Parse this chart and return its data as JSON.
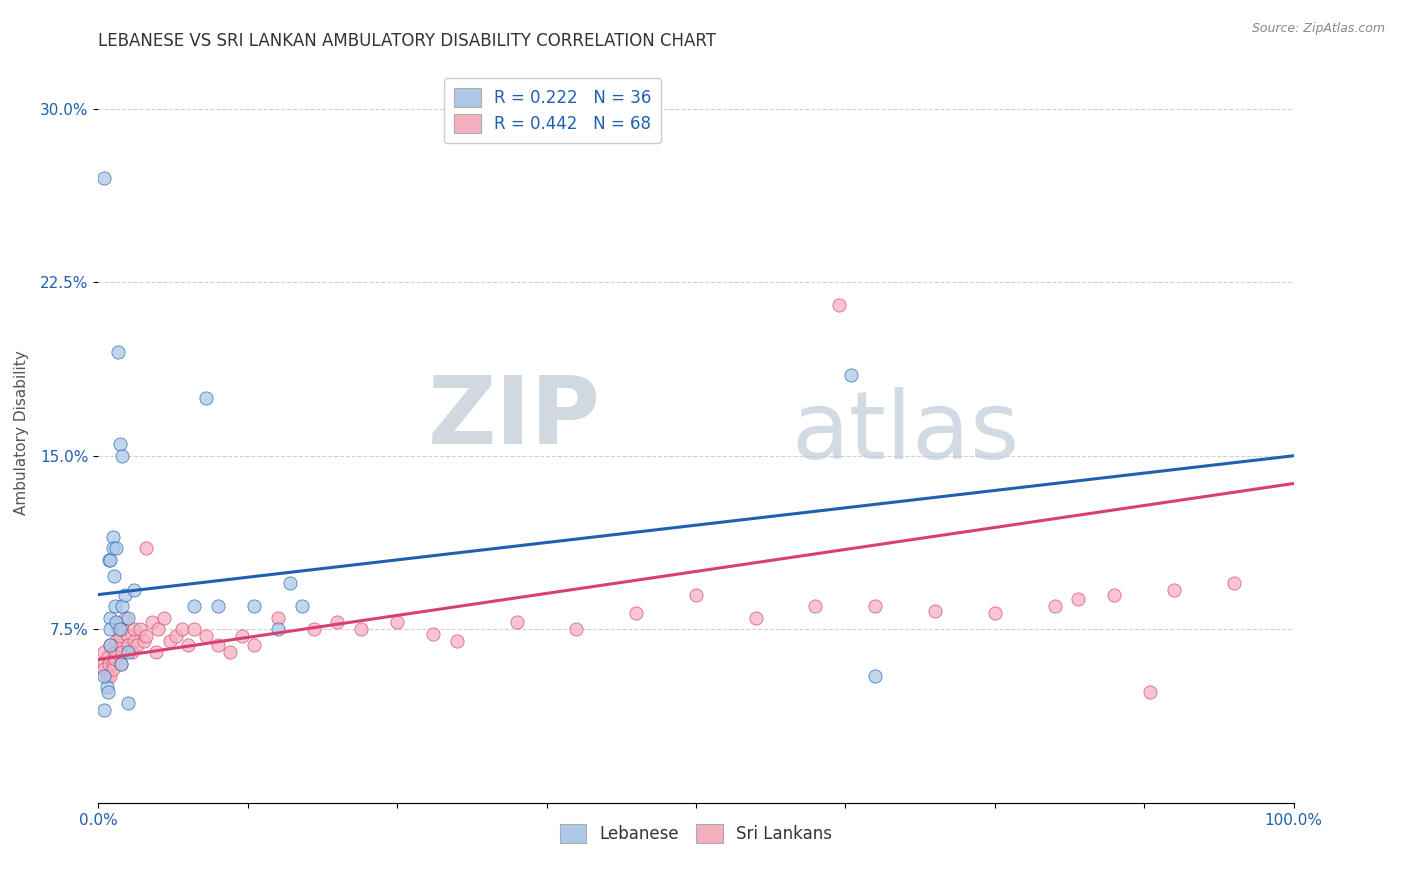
{
  "title": "LEBANESE VS SRI LANKAN AMBULATORY DISABILITY CORRELATION CHART",
  "source": "Source: ZipAtlas.com",
  "ylabel": "Ambulatory Disability",
  "xlim": [
    0,
    1.0
  ],
  "ylim": [
    0.0,
    0.32
  ],
  "yticks": [
    0.075,
    0.15,
    0.225,
    0.3
  ],
  "yticklabels": [
    "7.5%",
    "15.0%",
    "22.5%",
    "30.0%"
  ],
  "xticks": [
    0.0,
    0.125,
    0.25,
    0.375,
    0.5,
    0.625,
    0.75,
    0.875,
    1.0
  ],
  "xticklabels_show": [
    "0.0%",
    "100.0%"
  ],
  "lebanese_R": 0.222,
  "lebanese_N": 36,
  "srilankan_R": 0.442,
  "srilankan_N": 68,
  "lebanese_color": "#adc8e8",
  "srilankan_color": "#f5b0c0",
  "lebanese_line_color": "#2060b0",
  "srilankan_line_color": "#d84070",
  "lebanese_line_start": 0.09,
  "lebanese_line_end": 0.15,
  "srilankan_line_start": 0.062,
  "srilankan_line_end": 0.138,
  "lebanese_x": [
    0.005,
    0.007,
    0.008,
    0.009,
    0.01,
    0.01,
    0.01,
    0.01,
    0.012,
    0.012,
    0.013,
    0.014,
    0.015,
    0.015,
    0.016,
    0.018,
    0.018,
    0.019,
    0.02,
    0.02,
    0.022,
    0.025,
    0.025,
    0.03,
    0.08,
    0.09,
    0.1,
    0.13,
    0.15,
    0.16,
    0.17,
    0.63,
    0.65,
    0.025,
    0.005,
    0.005
  ],
  "lebanese_y": [
    0.27,
    0.05,
    0.048,
    0.105,
    0.105,
    0.08,
    0.075,
    0.068,
    0.115,
    0.11,
    0.098,
    0.085,
    0.11,
    0.078,
    0.195,
    0.155,
    0.075,
    0.06,
    0.15,
    0.085,
    0.09,
    0.08,
    0.065,
    0.092,
    0.085,
    0.175,
    0.085,
    0.085,
    0.075,
    0.095,
    0.085,
    0.185,
    0.055,
    0.043,
    0.04,
    0.055
  ],
  "srilankan_x": [
    0.005,
    0.005,
    0.005,
    0.007,
    0.008,
    0.009,
    0.01,
    0.01,
    0.012,
    0.012,
    0.013,
    0.014,
    0.015,
    0.015,
    0.016,
    0.018,
    0.018,
    0.019,
    0.02,
    0.02,
    0.022,
    0.025,
    0.025,
    0.028,
    0.03,
    0.03,
    0.032,
    0.035,
    0.038,
    0.04,
    0.04,
    0.045,
    0.048,
    0.05,
    0.055,
    0.06,
    0.065,
    0.07,
    0.075,
    0.08,
    0.09,
    0.1,
    0.11,
    0.12,
    0.13,
    0.15,
    0.18,
    0.2,
    0.22,
    0.25,
    0.28,
    0.3,
    0.35,
    0.4,
    0.45,
    0.5,
    0.55,
    0.6,
    0.62,
    0.65,
    0.7,
    0.75,
    0.8,
    0.82,
    0.85,
    0.88,
    0.9,
    0.95
  ],
  "srilankan_y": [
    0.065,
    0.06,
    0.058,
    0.055,
    0.063,
    0.06,
    0.068,
    0.055,
    0.06,
    0.058,
    0.065,
    0.062,
    0.07,
    0.065,
    0.075,
    0.068,
    0.072,
    0.06,
    0.075,
    0.065,
    0.08,
    0.072,
    0.068,
    0.065,
    0.07,
    0.075,
    0.068,
    0.075,
    0.07,
    0.11,
    0.072,
    0.078,
    0.065,
    0.075,
    0.08,
    0.07,
    0.072,
    0.075,
    0.068,
    0.075,
    0.072,
    0.068,
    0.065,
    0.072,
    0.068,
    0.08,
    0.075,
    0.078,
    0.075,
    0.078,
    0.073,
    0.07,
    0.078,
    0.075,
    0.082,
    0.09,
    0.08,
    0.085,
    0.215,
    0.085,
    0.083,
    0.082,
    0.085,
    0.088,
    0.09,
    0.048,
    0.092,
    0.095
  ],
  "watermark_zip": "ZIP",
  "watermark_atlas": "atlas",
  "background_color": "#ffffff",
  "grid_color": "#cccccc"
}
